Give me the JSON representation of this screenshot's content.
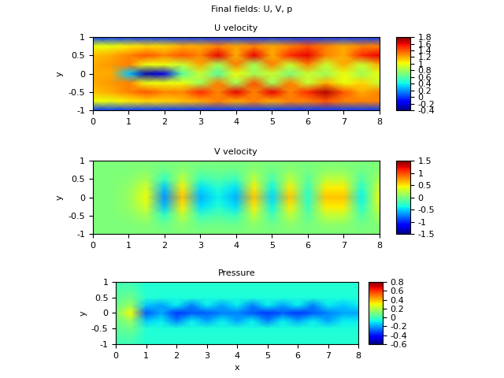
{
  "title": "Final fields: U, V, p",
  "chart_data": [
    {
      "type": "heatmap",
      "title": "U velocity",
      "ylabel": "y",
      "x": [
        0,
        0.5,
        1,
        1.5,
        2,
        2.5,
        3,
        3.5,
        4,
        4.5,
        5,
        5.5,
        6,
        6.5,
        7,
        7.5,
        8
      ],
      "y": [
        -1,
        -0.75,
        -0.5,
        -0.25,
        0,
        0.25,
        0.5,
        0.75,
        1
      ],
      "values": [
        [
          0,
          0,
          0,
          0,
          0,
          0,
          0,
          0,
          0,
          0,
          0,
          0,
          0,
          0,
          0,
          0,
          0
        ],
        [
          1.0,
          1.0,
          1.05,
          1.1,
          1.1,
          1.15,
          1.2,
          1.3,
          1.2,
          1.3,
          1.2,
          1.3,
          1.3,
          1.4,
          1.3,
          1.3,
          1.3
        ],
        [
          1.15,
          1.2,
          1.3,
          1.4,
          1.3,
          1.3,
          1.5,
          1.3,
          1.6,
          1.3,
          1.6,
          1.3,
          1.5,
          1.7,
          1.4,
          1.2,
          1.3
        ],
        [
          1.2,
          1.25,
          1.3,
          1.0,
          1.0,
          1.0,
          0.8,
          1.3,
          0.8,
          1.4,
          0.8,
          1.3,
          0.9,
          1.2,
          1.0,
          1.1,
          0.9
        ],
        [
          1.2,
          1.2,
          0.3,
          -0.3,
          -0.2,
          0.6,
          0.9,
          0.6,
          1.0,
          0.8,
          0.9,
          0.7,
          0.9,
          0.8,
          1.0,
          0.8,
          1.0
        ],
        [
          1.2,
          1.25,
          1.3,
          1.0,
          1.0,
          0.9,
          1.2,
          0.8,
          1.3,
          0.8,
          1.3,
          0.9,
          1.3,
          0.9,
          1.2,
          0.9,
          1.2
        ],
        [
          1.15,
          1.2,
          1.3,
          1.4,
          1.3,
          1.4,
          1.3,
          1.6,
          1.2,
          1.6,
          1.2,
          1.5,
          1.6,
          1.3,
          1.2,
          1.5,
          1.6
        ],
        [
          1.0,
          1.0,
          1.05,
          1.1,
          1.1,
          1.2,
          1.2,
          1.3,
          1.2,
          1.3,
          1.2,
          1.3,
          1.4,
          1.3,
          1.2,
          1.3,
          1.3
        ],
        [
          0,
          0,
          0,
          0,
          0,
          0,
          0,
          0,
          0,
          0,
          0,
          0,
          0,
          0,
          0,
          0,
          0
        ]
      ],
      "xlim": [
        0,
        8
      ],
      "ylim": [
        -1,
        1
      ],
      "xticks": [
        0,
        1,
        2,
        3,
        4,
        5,
        6,
        7,
        8
      ],
      "yticks": [
        -1,
        -0.5,
        0,
        0.5,
        1
      ],
      "colorbar": {
        "range": [
          -0.4,
          1.8
        ],
        "ticks": [
          -0.4,
          -0.2,
          0,
          0.2,
          0.4,
          0.6,
          0.8,
          1,
          1.2,
          1.4,
          1.6,
          1.8
        ]
      }
    },
    {
      "type": "heatmap",
      "title": "V velocity",
      "ylabel": "y",
      "x": [
        0,
        0.5,
        1,
        1.5,
        2,
        2.5,
        3,
        3.5,
        4,
        4.5,
        5,
        5.5,
        6,
        6.5,
        7,
        7.5,
        8
      ],
      "y": [
        -1,
        -0.75,
        -0.5,
        -0.25,
        0,
        0.25,
        0.5,
        0.75,
        1
      ],
      "values": [
        [
          0,
          0,
          0,
          0,
          0,
          0,
          0,
          0,
          0,
          0,
          0,
          0,
          0,
          0,
          0,
          0,
          0
        ],
        [
          0,
          0,
          0,
          0.04,
          -0.07,
          0.06,
          -0.06,
          -0.04,
          -0.06,
          0.06,
          -0.05,
          0.06,
          -0.03,
          0.06,
          0.06,
          -0.04,
          0.04
        ],
        [
          0,
          0,
          0.04,
          0.16,
          -0.28,
          0.24,
          -0.24,
          -0.16,
          -0.24,
          0.24,
          -0.2,
          0.24,
          -0.12,
          0.24,
          0.24,
          -0.16,
          0.16
        ],
        [
          0,
          0,
          0.08,
          0.32,
          -0.56,
          0.48,
          -0.48,
          -0.32,
          -0.48,
          0.48,
          -0.4,
          0.48,
          -0.24,
          0.48,
          0.48,
          -0.32,
          0.32
        ],
        [
          0,
          0,
          0.1,
          0.4,
          -0.7,
          0.6,
          -0.6,
          -0.4,
          -0.6,
          0.6,
          -0.5,
          0.6,
          -0.3,
          0.6,
          0.6,
          -0.4,
          0.4
        ],
        [
          0,
          0,
          0.08,
          0.32,
          -0.56,
          0.48,
          -0.48,
          -0.32,
          -0.48,
          0.48,
          -0.4,
          0.48,
          -0.24,
          0.48,
          0.48,
          -0.32,
          0.32
        ],
        [
          0,
          0,
          0.04,
          0.16,
          -0.28,
          0.24,
          -0.24,
          -0.16,
          -0.24,
          0.24,
          -0.2,
          0.24,
          -0.12,
          0.24,
          0.24,
          -0.16,
          0.16
        ],
        [
          0,
          0,
          0,
          0.04,
          -0.07,
          0.06,
          -0.06,
          -0.04,
          -0.06,
          0.06,
          -0.05,
          0.06,
          -0.03,
          0.06,
          0.06,
          -0.04,
          0.04
        ],
        [
          0,
          0,
          0,
          0,
          0,
          0,
          0,
          0,
          0,
          0,
          0,
          0,
          0,
          0,
          0,
          0,
          0
        ]
      ],
      "xlim": [
        0,
        8
      ],
      "ylim": [
        -1,
        1
      ],
      "xticks": [
        0,
        1,
        2,
        3,
        4,
        5,
        6,
        7,
        8
      ],
      "yticks": [
        -1,
        -0.5,
        0,
        0.5,
        1
      ],
      "colorbar": {
        "range": [
          -1.5,
          1.5
        ],
        "ticks": [
          -1.5,
          -1,
          -0.5,
          0,
          0.5,
          1,
          1.5
        ]
      }
    },
    {
      "type": "heatmap",
      "title": "Pressure",
      "xlabel": "x",
      "ylabel": "y",
      "x": [
        0,
        0.5,
        1,
        1.5,
        2,
        2.5,
        3,
        3.5,
        4,
        4.5,
        5,
        5.5,
        6,
        6.5,
        7,
        7.5,
        8
      ],
      "y": [
        -1,
        -0.75,
        -0.5,
        -0.25,
        0,
        0.25,
        0.5,
        0.75,
        1
      ],
      "values": [
        [
          0.0,
          0.0,
          -0.05,
          -0.05,
          -0.05,
          -0.05,
          -0.05,
          -0.05,
          -0.05,
          -0.05,
          -0.05,
          -0.05,
          -0.05,
          -0.05,
          -0.05,
          -0.05,
          -0.05
        ],
        [
          0.02,
          0.03,
          -0.05,
          -0.05,
          -0.05,
          -0.05,
          -0.05,
          -0.05,
          -0.05,
          -0.05,
          -0.05,
          -0.05,
          -0.05,
          -0.05,
          -0.05,
          -0.05,
          -0.05
        ],
        [
          0.04,
          0.08,
          -0.05,
          -0.06,
          -0.06,
          -0.06,
          -0.06,
          -0.06,
          -0.06,
          -0.06,
          -0.06,
          -0.06,
          -0.06,
          -0.06,
          -0.06,
          -0.06,
          -0.06
        ],
        [
          0.07,
          0.15,
          -0.15,
          -0.1,
          -0.25,
          -0.1,
          -0.2,
          -0.1,
          -0.2,
          -0.1,
          -0.25,
          -0.1,
          -0.2,
          -0.1,
          -0.2,
          -0.1,
          -0.1
        ],
        [
          0.1,
          0.3,
          -0.3,
          -0.2,
          -0.35,
          -0.3,
          -0.3,
          -0.25,
          -0.25,
          -0.3,
          -0.35,
          -0.3,
          -0.35,
          -0.3,
          -0.25,
          -0.2,
          -0.2
        ],
        [
          0.07,
          0.15,
          -0.15,
          -0.2,
          -0.1,
          -0.25,
          -0.1,
          -0.2,
          -0.1,
          -0.25,
          -0.1,
          -0.2,
          -0.1,
          -0.25,
          -0.1,
          -0.15,
          -0.1
        ],
        [
          0.04,
          0.08,
          -0.05,
          -0.06,
          -0.06,
          -0.06,
          -0.06,
          -0.06,
          -0.06,
          -0.06,
          -0.06,
          -0.06,
          -0.06,
          -0.06,
          -0.06,
          -0.06,
          -0.06
        ],
        [
          0.02,
          0.03,
          -0.05,
          -0.05,
          -0.05,
          -0.05,
          -0.05,
          -0.05,
          -0.05,
          -0.05,
          -0.05,
          -0.05,
          -0.05,
          -0.05,
          -0.05,
          -0.05,
          -0.05
        ],
        [
          0.0,
          0.0,
          -0.05,
          -0.05,
          -0.05,
          -0.05,
          -0.05,
          -0.05,
          -0.05,
          -0.05,
          -0.05,
          -0.05,
          -0.05,
          -0.05,
          -0.05,
          -0.05,
          -0.05
        ]
      ],
      "xlim": [
        0,
        8
      ],
      "ylim": [
        -1,
        1
      ],
      "xticks": [
        0,
        1,
        2,
        3,
        4,
        5,
        6,
        7,
        8
      ],
      "yticks": [
        -1,
        -0.5,
        0,
        0.5,
        1
      ],
      "colorbar": {
        "range": [
          -0.6,
          0.8
        ],
        "ticks": [
          -0.6,
          -0.4,
          -0.2,
          0,
          0.2,
          0.4,
          0.6,
          0.8
        ]
      }
    }
  ]
}
